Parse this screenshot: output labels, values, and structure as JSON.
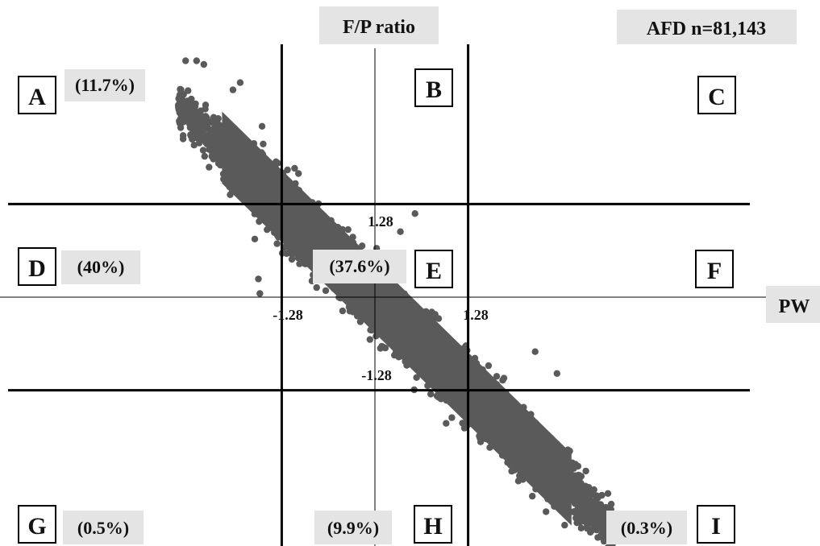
{
  "chart_data": {
    "type": "scatter",
    "title": "AFD n=81,143",
    "xlabel": "PW",
    "ylabel": "F/P ratio",
    "xlim": [
      -3.4,
      4.1
    ],
    "ylim": [
      -3.47,
      3.9
    ],
    "thresholds": {
      "x": [
        -1.28,
        1.28
      ],
      "y": [
        1.28,
        -1.28
      ]
    },
    "threshold_labels": {
      "y_upper": "1.28",
      "x_lower": "-1.28",
      "x_upper": "1.28",
      "y_lower": "-1.28"
    },
    "trend": {
      "slope": -0.98,
      "intercept": 0.0,
      "band_half_width": 0.55,
      "x_range": [
        -2.7,
        3.3
      ]
    },
    "outliers": [
      {
        "x": -2.6,
        "y": 3.25
      },
      {
        "x": -2.45,
        "y": 3.25
      },
      {
        "x": -2.35,
        "y": 3.2
      },
      {
        "x": -1.85,
        "y": 2.95
      },
      {
        "x": -1.95,
        "y": 2.85
      },
      {
        "x": -1.55,
        "y": 2.35
      },
      {
        "x": -1.2,
        "y": 1.75
      },
      {
        "x": -1.05,
        "y": 1.7
      },
      {
        "x": -1.65,
        "y": 0.8
      },
      {
        "x": -1.6,
        "y": 0.25
      },
      {
        "x": -1.58,
        "y": 0.05
      },
      {
        "x": 0.35,
        "y": 0.9
      },
      {
        "x": 0.55,
        "y": 1.15
      },
      {
        "x": 0.9,
        "y": 0.35
      },
      {
        "x": 2.2,
        "y": -0.75
      },
      {
        "x": 2.5,
        "y": -1.05
      },
      {
        "x": 2.3,
        "y": -2.45
      },
      {
        "x": 2.65,
        "y": -2.1
      },
      {
        "x": 2.8,
        "y": -2.6
      },
      {
        "x": 2.5,
        "y": -2.8
      },
      {
        "x": 3.2,
        "y": -2.7
      },
      {
        "x": 3.0,
        "y": -2.9
      },
      {
        "x": 3.1,
        "y": -2.85
      },
      {
        "x": 2.35,
        "y": -2.95
      }
    ],
    "point_color": "#5a5a5a",
    "grid": false
  },
  "quadrants": [
    {
      "letter": "A",
      "percent": "(11.7%)"
    },
    {
      "letter": "B",
      "percent": ""
    },
    {
      "letter": "C",
      "percent": ""
    },
    {
      "letter": "D",
      "percent": "(40%)"
    },
    {
      "letter": "E",
      "percent": "(37.6%)"
    },
    {
      "letter": "F",
      "percent": ""
    },
    {
      "letter": "G",
      "percent": "(0.5%)"
    },
    {
      "letter": "H",
      "percent": "(9.9%)"
    },
    {
      "letter": "I",
      "percent": "(0.3%)"
    }
  ],
  "colors": {
    "points": "#5a5a5a",
    "label_bg": "#e4e4e4",
    "lines": "#000000"
  }
}
